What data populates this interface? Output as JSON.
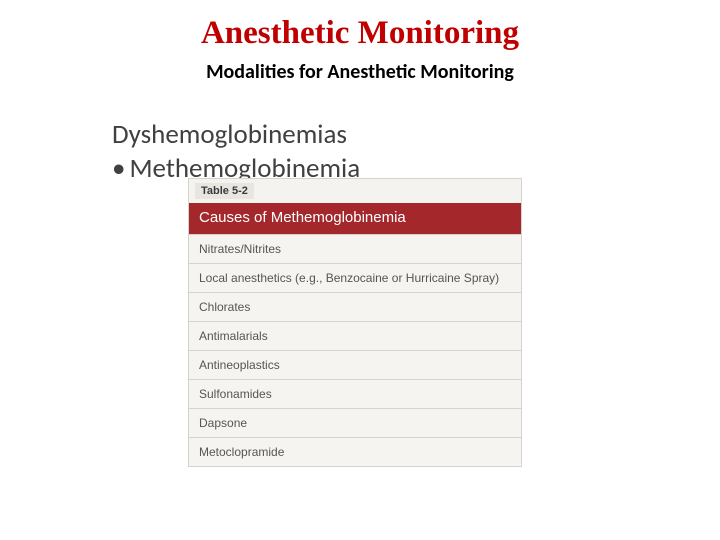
{
  "title": {
    "text": "Anesthetic Monitoring",
    "style": "font-size:33px; color:#c00000; font-family:Georgia,'Times New Roman',serif;"
  },
  "subtitle": {
    "text": "Modalities  for Anesthetic Monitoring",
    "style": "font-size:20px; color:#000000;"
  },
  "body": {
    "heading": {
      "text": "Dyshemoglobinemias",
      "style": "font-size:27px; color:#404040;"
    },
    "bullet": {
      "marker": "•",
      "text": "Methemoglobinemia",
      "style": "font-size:27px; color:#404040;"
    }
  },
  "table": {
    "label": "Table 5-2",
    "label_style": "font-size:11px; color:#3a3a3a;",
    "title": "Causes of Methemoglobinemia",
    "title_style": "background:#a3272b; font-size:15px;",
    "row_style": "font-size:12px;",
    "rows": [
      "Nitrates/Nitrites",
      "Local anesthetics (e.g., Benzocaine or Hurricaine Spray)",
      "Chlorates",
      "Antimalarials",
      "Antineoplastics",
      "Sulfonamides",
      "Dapsone",
      "Metoclopramide"
    ]
  }
}
